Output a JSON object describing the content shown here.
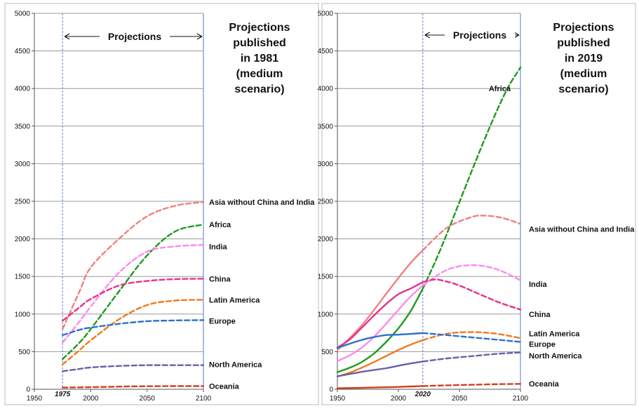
{
  "chart_data": [
    {
      "type": "line",
      "ylim": [
        0,
        5000
      ],
      "xlim": [
        1950,
        2100
      ],
      "y_ticks": [
        "0",
        "500",
        "1000",
        "1500",
        "2000",
        "2500",
        "3000",
        "3500",
        "4000",
        "4500",
        "5000"
      ],
      "x_ticks": [
        "1950",
        "2000",
        "2050",
        "2100"
      ],
      "x_tick_values": [
        1950,
        2000,
        2050,
        2100
      ],
      "grid": "horizontal",
      "projection_start": 1975,
      "projection_start_label": "1975",
      "projections_label": "Projections",
      "annotation": [
        "Projections",
        "published",
        "in 1981",
        "(medium",
        "scenario)"
      ],
      "series": [
        {
          "name": "Asia without China and India",
          "color": "#f08080",
          "dashed": true,
          "points": [
            [
              1975,
              800
            ],
            [
              1990,
              1300
            ],
            [
              2000,
              1620
            ],
            [
              2025,
              2000
            ],
            [
              2050,
              2300
            ],
            [
              2075,
              2440
            ],
            [
              2100,
              2490
            ]
          ]
        },
        {
          "name": "Africa",
          "color": "#1e9a1e",
          "dashed": true,
          "points": [
            [
              1975,
              400
            ],
            [
              1990,
              620
            ],
            [
              2000,
              800
            ],
            [
              2025,
              1300
            ],
            [
              2050,
              1780
            ],
            [
              2075,
              2100
            ],
            [
              2100,
              2190
            ]
          ]
        },
        {
          "name": "India",
          "color": "#ff88ee",
          "dashed": true,
          "points": [
            [
              1975,
              620
            ],
            [
              1990,
              900
            ],
            [
              2000,
              1100
            ],
            [
              2025,
              1550
            ],
            [
              2050,
              1830
            ],
            [
              2075,
              1900
            ],
            [
              2100,
              1920
            ]
          ]
        },
        {
          "name": "China",
          "color": "#e8308a",
          "dashed": true,
          "points": [
            [
              1975,
              910
            ],
            [
              1990,
              1090
            ],
            [
              2000,
              1200
            ],
            [
              2025,
              1380
            ],
            [
              2050,
              1440
            ],
            [
              2075,
              1465
            ],
            [
              2100,
              1470
            ]
          ]
        },
        {
          "name": "Latin America",
          "color": "#f07a1e",
          "dashed": true,
          "points": [
            [
              1975,
              330
            ],
            [
              1990,
              520
            ],
            [
              2000,
              650
            ],
            [
              2025,
              930
            ],
            [
              2050,
              1120
            ],
            [
              2075,
              1180
            ],
            [
              2100,
              1190
            ]
          ]
        },
        {
          "name": "Europe",
          "color": "#2a72c8",
          "dashed": true,
          "points": [
            [
              1975,
              720
            ],
            [
              1990,
              790
            ],
            [
              2000,
              820
            ],
            [
              2025,
              870
            ],
            [
              2050,
              905
            ],
            [
              2075,
              915
            ],
            [
              2100,
              920
            ]
          ]
        },
        {
          "name": "North America",
          "color": "#6a5fa8",
          "dashed": true,
          "points": [
            [
              1975,
              240
            ],
            [
              1990,
              270
            ],
            [
              2000,
              290
            ],
            [
              2025,
              310
            ],
            [
              2050,
              320
            ],
            [
              2075,
              320
            ],
            [
              2100,
              320
            ]
          ]
        },
        {
          "name": "Oceania",
          "color": "#d04020",
          "dashed": true,
          "points": [
            [
              1975,
              22
            ],
            [
              2000,
              28
            ],
            [
              2025,
              35
            ],
            [
              2050,
              40
            ],
            [
              2075,
              42
            ],
            [
              2100,
              42
            ]
          ]
        }
      ],
      "labels": [
        {
          "text": "Asia without China and India",
          "value": 2490
        },
        {
          "text": "Africa",
          "value": 2190
        },
        {
          "text": "India",
          "value": 1900
        },
        {
          "text": "China",
          "value": 1470
        },
        {
          "text": "Latin America",
          "value": 1190
        },
        {
          "text": "Europe",
          "value": 910
        },
        {
          "text": "North America",
          "value": 330
        },
        {
          "text": "Oceania",
          "value": 40
        }
      ]
    },
    {
      "type": "line",
      "ylim": [
        0,
        5000
      ],
      "xlim": [
        1950,
        2100
      ],
      "y_ticks": [
        "0",
        "500",
        "1000",
        "1500",
        "2000",
        "2500",
        "3000",
        "3500",
        "4000",
        "4500",
        "5000"
      ],
      "x_ticks": [
        "1950",
        "2000",
        "2050",
        "2100"
      ],
      "x_tick_values": [
        1950,
        2000,
        2050,
        2100
      ],
      "grid": "horizontal",
      "projection_start": 2020,
      "projection_start_label": "2020",
      "projections_label": "Projections",
      "annotation": [
        "Projections",
        "published",
        "in 2019",
        "(medium",
        "scenario)"
      ],
      "series": [
        {
          "name": "Africa",
          "color": "#1e9a1e",
          "dashed": false,
          "points": [
            [
              1950,
              228
            ],
            [
              1960,
              285
            ],
            [
              1970,
              363
            ],
            [
              1980,
              476
            ],
            [
              1990,
              630
            ],
            [
              2000,
              811
            ],
            [
              2010,
              1039
            ],
            [
              2020,
              1340
            ]
          ]
        },
        {
          "name": "Africa",
          "color": "#1e9a1e",
          "dashed": true,
          "points": [
            [
              2020,
              1340
            ],
            [
              2030,
              1690
            ],
            [
              2040,
              2080
            ],
            [
              2050,
              2490
            ],
            [
              2060,
              2900
            ],
            [
              2070,
              3300
            ],
            [
              2080,
              3680
            ],
            [
              2090,
              4020
            ],
            [
              2100,
              4280
            ]
          ]
        },
        {
          "name": "Asia without China and India",
          "color": "#f08080",
          "dashed": false,
          "points": [
            [
              1950,
              520
            ],
            [
              1970,
              850
            ],
            [
              1990,
              1270
            ],
            [
              2000,
              1480
            ],
            [
              2010,
              1680
            ],
            [
              2020,
              1850
            ]
          ]
        },
        {
          "name": "Asia without China and India",
          "color": "#f08080",
          "dashed": true,
          "points": [
            [
              2020,
              1850
            ],
            [
              2040,
              2150
            ],
            [
              2060,
              2290
            ],
            [
              2070,
              2310
            ],
            [
              2085,
              2280
            ],
            [
              2100,
              2200
            ]
          ]
        },
        {
          "name": "India",
          "color": "#ff88ee",
          "dashed": false,
          "points": [
            [
              1950,
              376
            ],
            [
              1960,
              450
            ],
            [
              1970,
              555
            ],
            [
              1980,
              697
            ],
            [
              1990,
              873
            ],
            [
              2000,
              1056
            ],
            [
              2010,
              1234
            ],
            [
              2020,
              1380
            ]
          ]
        },
        {
          "name": "India",
          "color": "#ff88ee",
          "dashed": true,
          "points": [
            [
              2020,
              1380
            ],
            [
              2040,
              1590
            ],
            [
              2060,
              1650
            ],
            [
              2080,
              1600
            ],
            [
              2100,
              1450
            ]
          ]
        },
        {
          "name": "China",
          "color": "#e8308a",
          "dashed": false,
          "points": [
            [
              1950,
              554
            ],
            [
              1960,
              660
            ],
            [
              1970,
              818
            ],
            [
              1980,
              981
            ],
            [
              1990,
              1135
            ],
            [
              2000,
              1264
            ],
            [
              2010,
              1340
            ],
            [
              2020,
              1424
            ]
          ]
        },
        {
          "name": "China",
          "color": "#e8308a",
          "dashed": true,
          "points": [
            [
              2020,
              1424
            ],
            [
              2030,
              1460
            ],
            [
              2040,
              1430
            ],
            [
              2050,
              1380
            ],
            [
              2070,
              1240
            ],
            [
              2085,
              1140
            ],
            [
              2100,
              1060
            ]
          ]
        },
        {
          "name": "Latin America",
          "color": "#f07a1e",
          "dashed": false,
          "points": [
            [
              1950,
              169
            ],
            [
              1960,
              220
            ],
            [
              1970,
              287
            ],
            [
              1980,
              362
            ],
            [
              1990,
              443
            ],
            [
              2000,
              522
            ],
            [
              2010,
              593
            ],
            [
              2020,
              655
            ]
          ]
        },
        {
          "name": "Latin America",
          "color": "#f07a1e",
          "dashed": true,
          "points": [
            [
              2020,
              655
            ],
            [
              2040,
              740
            ],
            [
              2060,
              760
            ],
            [
              2080,
              740
            ],
            [
              2100,
              680
            ]
          ]
        },
        {
          "name": "Europe",
          "color": "#2a72c8",
          "dashed": false,
          "points": [
            [
              1950,
              549
            ],
            [
              1960,
              605
            ],
            [
              1970,
              657
            ],
            [
              1980,
              694
            ],
            [
              1990,
              721
            ],
            [
              2000,
              726
            ],
            [
              2010,
              736
            ],
            [
              2020,
              748
            ]
          ]
        },
        {
          "name": "Europe",
          "color": "#2a72c8",
          "dashed": true,
          "points": [
            [
              2020,
              748
            ],
            [
              2040,
              720
            ],
            [
              2060,
              690
            ],
            [
              2080,
              660
            ],
            [
              2100,
              630
            ]
          ]
        },
        {
          "name": "North America",
          "color": "#6a5fa8",
          "dashed": false,
          "points": [
            [
              1950,
              173
            ],
            [
              1970,
              231
            ],
            [
              1990,
              280
            ],
            [
              2000,
              313
            ],
            [
              2010,
              343
            ],
            [
              2020,
              369
            ]
          ]
        },
        {
          "name": "North America",
          "color": "#6a5fa8",
          "dashed": true,
          "points": [
            [
              2020,
              369
            ],
            [
              2040,
              410
            ],
            [
              2060,
              440
            ],
            [
              2080,
              470
            ],
            [
              2100,
              490
            ]
          ]
        },
        {
          "name": "Oceania",
          "color": "#d04020",
          "dashed": false,
          "points": [
            [
              1950,
              13
            ],
            [
              1970,
              20
            ],
            [
              1990,
              27
            ],
            [
              2000,
              31
            ],
            [
              2010,
              37
            ],
            [
              2020,
              43
            ]
          ]
        },
        {
          "name": "Oceania",
          "color": "#d04020",
          "dashed": true,
          "points": [
            [
              2020,
              43
            ],
            [
              2040,
              52
            ],
            [
              2060,
              60
            ],
            [
              2080,
              67
            ],
            [
              2100,
              72
            ]
          ]
        }
      ],
      "labels": [
        {
          "text": "Africa",
          "value": 4000,
          "inside": true
        },
        {
          "text": "Asia without China and India",
          "value": 2130
        },
        {
          "text": "India",
          "value": 1400
        },
        {
          "text": "China",
          "value": 1000
        },
        {
          "text": "Latin America",
          "value": 740
        },
        {
          "text": "Europe",
          "value": 600
        },
        {
          "text": "North America",
          "value": 450
        },
        {
          "text": "Oceania",
          "value": 75
        }
      ]
    }
  ]
}
